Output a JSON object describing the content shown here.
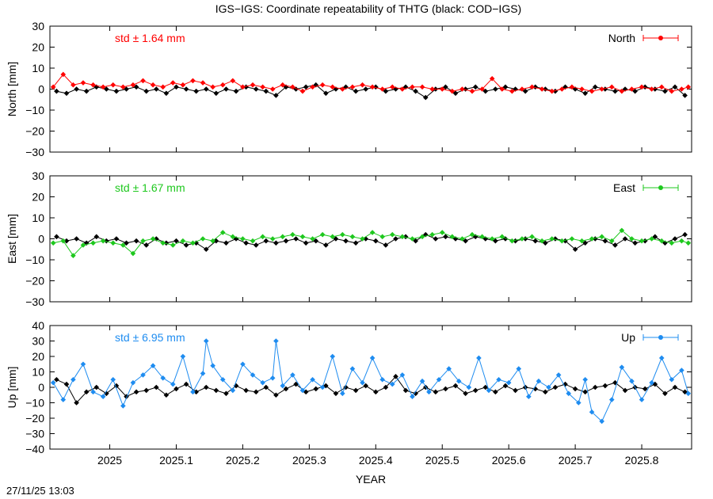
{
  "title": "IGS−IGS: Coordinate repeatability of THTG (black: COD−IGS)",
  "timestamp": "27/11/25 13:03",
  "colors": {
    "reference": "#000000",
    "North": "#ff0000",
    "East": "#1ec81e",
    "Up": "#1e8cf0"
  },
  "chart_data": {
    "type": "scatter",
    "xlabel": "YEAR",
    "xlim": [
      2024.91,
      2025.875
    ],
    "xticks": [
      "2025",
      "2025.1",
      "2025.2",
      "2025.3",
      "2025.4",
      "2025.5",
      "2025.6",
      "2025.7",
      "2025.8"
    ],
    "xtick_values": [
      2025.0,
      2025.1,
      2025.2,
      2025.3,
      2025.4,
      2025.5,
      2025.6,
      2025.7,
      2025.8
    ],
    "panels": [
      {
        "component": "North",
        "ylabel": "North [mm]",
        "ylim": [
          -30,
          30
        ],
        "yticks": [
          "30",
          "20",
          "10",
          "0",
          "−10",
          "−20",
          "−30"
        ],
        "ytick_values": [
          30,
          20,
          10,
          0,
          -10,
          -20,
          -30
        ],
        "std_label": "std ± 1.64 mm",
        "legend": "North",
        "series": [
          {
            "name": "North",
            "x": [
              2024.915,
              2024.93,
              2024.945,
              2024.96,
              2024.975,
              2024.99,
              2025.005,
              2025.02,
              2025.035,
              2025.05,
              2025.065,
              2025.08,
              2025.095,
              2025.11,
              2025.125,
              2025.14,
              2025.155,
              2025.17,
              2025.185,
              2025.2,
              2025.215,
              2025.23,
              2025.245,
              2025.26,
              2025.275,
              2025.29,
              2025.305,
              2025.32,
              2025.335,
              2025.35,
              2025.365,
              2025.38,
              2025.395,
              2025.41,
              2025.425,
              2025.44,
              2025.455,
              2025.47,
              2025.485,
              2025.5,
              2025.515,
              2025.53,
              2025.545,
              2025.56,
              2025.575,
              2025.59,
              2025.605,
              2025.62,
              2025.635,
              2025.65,
              2025.665,
              2025.68,
              2025.695,
              2025.71,
              2025.725,
              2025.74,
              2025.755,
              2025.77,
              2025.785,
              2025.8,
              2025.815,
              2025.83,
              2025.845,
              2025.86,
              2025.87
            ],
            "y": [
              1,
              7,
              2,
              3,
              2,
              1,
              2,
              1,
              2,
              4,
              2,
              1,
              3,
              2,
              4,
              3,
              1,
              2,
              4,
              1,
              2,
              1,
              0,
              2,
              1,
              -1,
              1,
              2,
              1,
              0,
              1,
              2,
              1,
              0,
              1,
              0,
              1,
              1,
              0,
              0,
              -1,
              0,
              -1,
              0,
              5,
              0,
              -1,
              0,
              1,
              0,
              -1,
              0,
              1,
              0,
              -1,
              0,
              1,
              -1,
              0,
              1,
              0,
              1,
              -1,
              0,
              1
            ]
          }
        ],
        "reference": {
          "name": "COD−IGS",
          "x": [
            2024.92,
            2024.935,
            2024.95,
            2024.965,
            2024.98,
            2024.995,
            2025.01,
            2025.025,
            2025.04,
            2025.055,
            2025.07,
            2025.085,
            2025.1,
            2025.115,
            2025.13,
            2025.145,
            2025.16,
            2025.175,
            2025.19,
            2025.205,
            2025.22,
            2025.235,
            2025.25,
            2025.265,
            2025.28,
            2025.295,
            2025.31,
            2025.325,
            2025.34,
            2025.355,
            2025.37,
            2025.385,
            2025.4,
            2025.415,
            2025.43,
            2025.445,
            2025.46,
            2025.475,
            2025.49,
            2025.505,
            2025.52,
            2025.535,
            2025.55,
            2025.565,
            2025.58,
            2025.595,
            2025.61,
            2025.625,
            2025.64,
            2025.655,
            2025.67,
            2025.685,
            2025.7,
            2025.715,
            2025.73,
            2025.745,
            2025.76,
            2025.775,
            2025.79,
            2025.805,
            2025.82,
            2025.835,
            2025.85,
            2025.865
          ],
          "y": [
            -1,
            -2,
            0,
            -1,
            1,
            0,
            -1,
            0,
            1,
            -1,
            0,
            -2,
            1,
            0,
            -1,
            0,
            -2,
            0,
            -1,
            1,
            0,
            -1,
            -3,
            1,
            0,
            1,
            2,
            -2,
            0,
            1,
            -1,
            0,
            1,
            -1,
            0,
            1,
            -1,
            -4,
            0,
            1,
            -2,
            0,
            1,
            -1,
            0,
            1,
            0,
            -1,
            1,
            0,
            -1,
            1,
            0,
            -2,
            1,
            0,
            -1,
            0,
            -1,
            1,
            0,
            -1,
            1,
            -3
          ]
        }
      },
      {
        "component": "East",
        "ylabel": "East [mm]",
        "ylim": [
          -30,
          30
        ],
        "yticks": [
          "30",
          "20",
          "10",
          "0",
          "−10",
          "−20",
          "−30"
        ],
        "ytick_values": [
          30,
          20,
          10,
          0,
          -10,
          -20,
          -30
        ],
        "std_label": "std ± 1.67 mm",
        "legend": "East",
        "series": [
          {
            "name": "East",
            "x": [
              2024.915,
              2024.93,
              2024.945,
              2024.96,
              2024.975,
              2024.99,
              2025.005,
              2025.02,
              2025.035,
              2025.05,
              2025.065,
              2025.08,
              2025.095,
              2025.11,
              2025.125,
              2025.14,
              2025.155,
              2025.17,
              2025.185,
              2025.2,
              2025.215,
              2025.23,
              2025.245,
              2025.26,
              2025.275,
              2025.29,
              2025.305,
              2025.32,
              2025.335,
              2025.35,
              2025.365,
              2025.38,
              2025.395,
              2025.41,
              2025.425,
              2025.44,
              2025.455,
              2025.47,
              2025.485,
              2025.5,
              2025.515,
              2025.53,
              2025.545,
              2025.56,
              2025.575,
              2025.59,
              2025.605,
              2025.62,
              2025.635,
              2025.65,
              2025.665,
              2025.68,
              2025.695,
              2025.71,
              2025.725,
              2025.74,
              2025.755,
              2025.77,
              2025.785,
              2025.8,
              2025.815,
              2025.83,
              2025.845,
              2025.86,
              2025.87
            ],
            "y": [
              -2,
              -1,
              -8,
              -3,
              -2,
              -1,
              -2,
              -3,
              -7,
              -1,
              0,
              -2,
              -3,
              -1,
              -2,
              0,
              -1,
              3,
              1,
              0,
              -1,
              1,
              0,
              1,
              2,
              1,
              0,
              2,
              1,
              2,
              1,
              0,
              3,
              1,
              2,
              1,
              0,
              1,
              2,
              3,
              1,
              0,
              2,
              1,
              0,
              1,
              -1,
              0,
              1,
              -1,
              0,
              -1,
              0,
              -1,
              0,
              1,
              -1,
              4,
              0,
              -1,
              0,
              -1,
              -2,
              -1,
              -2
            ]
          }
        ],
        "reference": {
          "name": "COD−IGS",
          "x": [
            2024.92,
            2024.935,
            2024.95,
            2024.965,
            2024.98,
            2024.995,
            2025.01,
            2025.025,
            2025.04,
            2025.055,
            2025.07,
            2025.085,
            2025.1,
            2025.115,
            2025.13,
            2025.145,
            2025.16,
            2025.175,
            2025.19,
            2025.205,
            2025.22,
            2025.235,
            2025.25,
            2025.265,
            2025.28,
            2025.295,
            2025.31,
            2025.325,
            2025.34,
            2025.355,
            2025.37,
            2025.385,
            2025.4,
            2025.415,
            2025.43,
            2025.445,
            2025.46,
            2025.475,
            2025.49,
            2025.505,
            2025.52,
            2025.535,
            2025.55,
            2025.565,
            2025.58,
            2025.595,
            2025.61,
            2025.625,
            2025.64,
            2025.655,
            2025.67,
            2025.685,
            2025.7,
            2025.715,
            2025.73,
            2025.745,
            2025.76,
            2025.775,
            2025.79,
            2025.805,
            2025.82,
            2025.835,
            2025.85,
            2025.865
          ],
          "y": [
            1,
            -1,
            0,
            -2,
            1,
            -1,
            0,
            -2,
            -1,
            -3,
            0,
            -2,
            -1,
            -3,
            -2,
            -5,
            -1,
            -2,
            0,
            -2,
            -3,
            -1,
            -2,
            -1,
            0,
            -2,
            -1,
            -3,
            0,
            -1,
            -2,
            0,
            -1,
            -3,
            0,
            1,
            -1,
            2,
            0,
            1,
            0,
            -1,
            1,
            0,
            -1,
            0,
            -1,
            0,
            -1,
            -2,
            0,
            -1,
            -5,
            -2,
            0,
            -1,
            -3,
            0,
            -2,
            -1,
            1,
            -2,
            0,
            2
          ]
        }
      },
      {
        "component": "Up",
        "ylabel": "Up [mm]",
        "ylim": [
          -40,
          40
        ],
        "yticks": [
          "40",
          "30",
          "20",
          "10",
          "0",
          "−10",
          "−20",
          "−30",
          "−40"
        ],
        "ytick_values": [
          40,
          30,
          20,
          10,
          0,
          -10,
          -20,
          -30,
          -40
        ],
        "std_label": "std ± 6.95 mm",
        "legend": "Up",
        "series": [
          {
            "name": "Up",
            "x": [
              2024.915,
              2024.93,
              2024.945,
              2024.96,
              2024.975,
              2024.99,
              2025.005,
              2025.02,
              2025.035,
              2025.05,
              2025.065,
              2025.08,
              2025.095,
              2025.11,
              2025.125,
              2025.14,
              2025.145,
              2025.155,
              2025.17,
              2025.185,
              2025.2,
              2025.215,
              2025.23,
              2025.245,
              2025.25,
              2025.26,
              2025.275,
              2025.29,
              2025.305,
              2025.32,
              2025.335,
              2025.35,
              2025.365,
              2025.38,
              2025.395,
              2025.41,
              2025.425,
              2025.44,
              2025.455,
              2025.47,
              2025.48,
              2025.495,
              2025.51,
              2025.525,
              2025.54,
              2025.555,
              2025.57,
              2025.585,
              2025.6,
              2025.615,
              2025.63,
              2025.645,
              2025.66,
              2025.675,
              2025.69,
              2025.705,
              2025.715,
              2025.725,
              2025.74,
              2025.755,
              2025.77,
              2025.785,
              2025.8,
              2025.815,
              2025.83,
              2025.845,
              2025.86,
              2025.87
            ],
            "y": [
              3,
              -8,
              5,
              15,
              -3,
              -6,
              5,
              -12,
              3,
              8,
              14,
              6,
              2,
              20,
              -3,
              9,
              30,
              14,
              5,
              -2,
              15,
              8,
              3,
              6,
              30,
              1,
              8,
              -2,
              5,
              0,
              20,
              -4,
              12,
              3,
              19,
              5,
              2,
              8,
              -6,
              4,
              -3,
              5,
              12,
              4,
              0,
              19,
              -2,
              5,
              3,
              12,
              -6,
              4,
              0,
              8,
              -4,
              -10,
              5,
              -16,
              -22,
              -8,
              13,
              4,
              -8,
              3,
              19,
              5,
              11,
              -4
            ]
          }
        ],
        "reference": {
          "name": "COD−IGS",
          "x": [
            2024.92,
            2024.935,
            2024.95,
            2024.965,
            2024.98,
            2024.995,
            2025.01,
            2025.025,
            2025.04,
            2025.055,
            2025.07,
            2025.085,
            2025.1,
            2025.115,
            2025.13,
            2025.145,
            2025.16,
            2025.175,
            2025.19,
            2025.205,
            2025.22,
            2025.235,
            2025.25,
            2025.265,
            2025.28,
            2025.295,
            2025.31,
            2025.325,
            2025.34,
            2025.355,
            2025.37,
            2025.385,
            2025.4,
            2025.415,
            2025.43,
            2025.445,
            2025.46,
            2025.475,
            2025.49,
            2025.505,
            2025.52,
            2025.535,
            2025.55,
            2025.565,
            2025.58,
            2025.595,
            2025.61,
            2025.625,
            2025.64,
            2025.655,
            2025.67,
            2025.685,
            2025.7,
            2025.715,
            2025.73,
            2025.745,
            2025.76,
            2025.775,
            2025.79,
            2025.805,
            2025.82,
            2025.835,
            2025.85,
            2025.865
          ],
          "y": [
            5,
            2,
            -10,
            -3,
            0,
            -4,
            1,
            -6,
            -3,
            -2,
            0,
            -5,
            -1,
            2,
            -3,
            0,
            -2,
            -4,
            1,
            -2,
            -3,
            0,
            -5,
            -1,
            2,
            -3,
            -1,
            1,
            -4,
            0,
            -2,
            1,
            -3,
            0,
            7,
            -2,
            -4,
            0,
            -3,
            -1,
            1,
            -4,
            -2,
            0,
            -3,
            1,
            -2,
            0,
            -1,
            -3,
            0,
            2,
            -1,
            -3,
            0,
            1,
            3,
            -2,
            0,
            -1,
            2,
            -4,
            0,
            -3
          ]
        }
      }
    ]
  }
}
